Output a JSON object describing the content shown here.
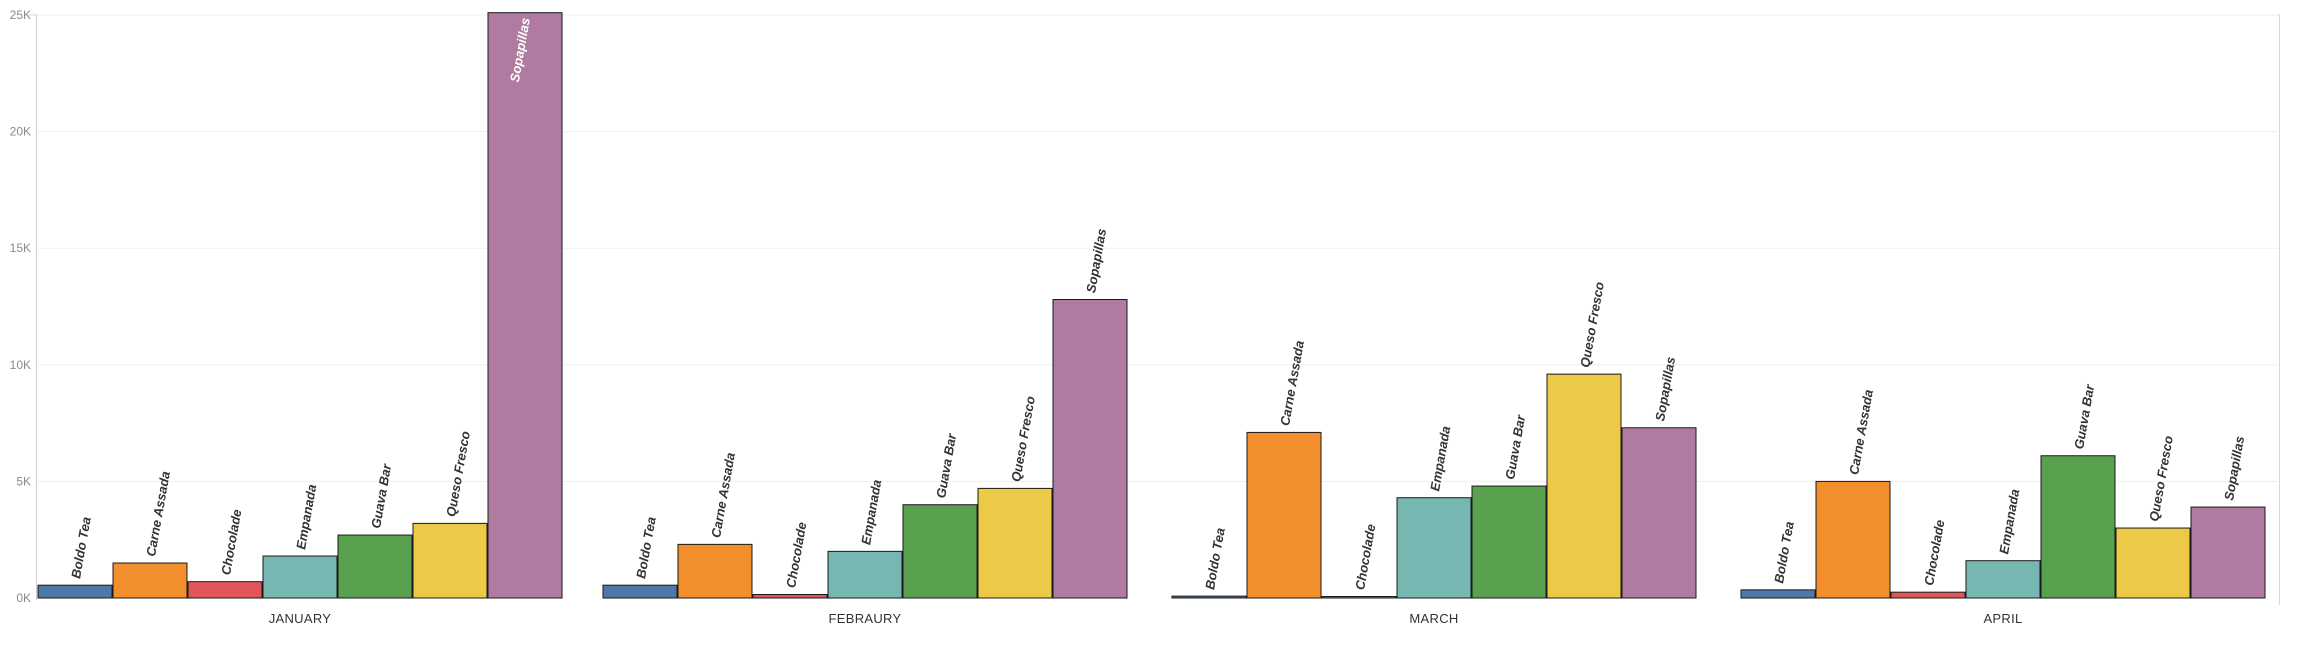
{
  "chart_data": {
    "type": "bar",
    "title": "",
    "xlabel": "",
    "ylabel": "",
    "ylim": [
      0,
      25000
    ],
    "yticks": [
      "0K",
      "5K",
      "10K",
      "15K",
      "20K",
      "25K"
    ],
    "grid": true,
    "legend": "none",
    "series_colors": {
      "Boldo Tea": "#4e79a7",
      "Carne Assada": "#f28e2b",
      "Chocolade": "#e15759",
      "Empanada": "#76b7b2",
      "Guava Bar": "#59a14f",
      "Queso Fresco": "#edc948",
      "Sopapillas": "#b07aa1"
    },
    "panels": [
      {
        "category": "JANUARY",
        "bars": [
          {
            "label": "Boldo Tea",
            "value": 550
          },
          {
            "label": "Carne Assada",
            "value": 1500
          },
          {
            "label": "Chocolade",
            "value": 700
          },
          {
            "label": "Empanada",
            "value": 1800
          },
          {
            "label": "Guava Bar",
            "value": 2700
          },
          {
            "label": "Queso Fresco",
            "value": 3200
          },
          {
            "label": "Sopapillas",
            "value": 25100
          }
        ]
      },
      {
        "category": "FEBRAURY",
        "bars": [
          {
            "label": "Boldo Tea",
            "value": 550
          },
          {
            "label": "Carne Assada",
            "value": 2300
          },
          {
            "label": "Chocolade",
            "value": 150
          },
          {
            "label": "Empanada",
            "value": 2000
          },
          {
            "label": "Guava Bar",
            "value": 4000
          },
          {
            "label": "Queso Fresco",
            "value": 4700
          },
          {
            "label": "Sopapillas",
            "value": 12800
          }
        ]
      },
      {
        "category": "MARCH",
        "bars": [
          {
            "label": "Boldo Tea",
            "value": 80
          },
          {
            "label": "Carne Assada",
            "value": 7100
          },
          {
            "label": "Chocolade",
            "value": 30
          },
          {
            "label": "Empanada",
            "value": 4300
          },
          {
            "label": "Guava Bar",
            "value": 4800
          },
          {
            "label": "Queso Fresco",
            "value": 9600
          },
          {
            "label": "Sopapillas",
            "value": 7300
          }
        ]
      },
      {
        "category": "APRIL",
        "bars": [
          {
            "label": "Boldo Tea",
            "value": 350
          },
          {
            "label": "Carne Assada",
            "value": 5000
          },
          {
            "label": "Chocolade",
            "value": 250
          },
          {
            "label": "Empanada",
            "value": 1600
          },
          {
            "label": "Guava Bar",
            "value": 6100
          },
          {
            "label": "Queso Fresco",
            "value": 3000
          },
          {
            "label": "Sopapillas",
            "value": 3900
          }
        ]
      }
    ]
  }
}
